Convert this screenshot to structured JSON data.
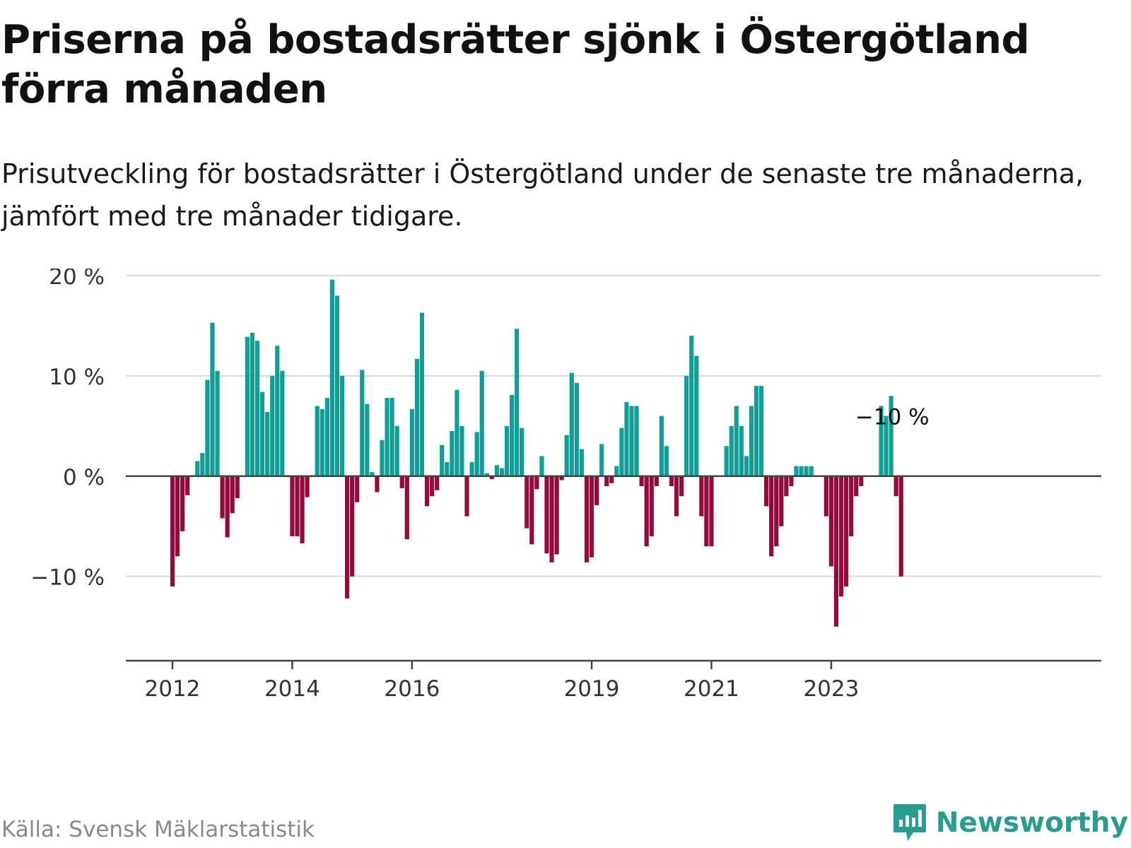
{
  "header": {
    "title": "Priserna på bostadsrätter sjönk i Östergötland förra månaden",
    "subtitle": "Prisutveckling för bostadsrätter i Östergötland under de senaste tre månaderna, jämfört med tre månader tidigare."
  },
  "footer": {
    "source": "Källa: Svensk Mäklarstatistik",
    "brand": "Newsworthy",
    "brand_icon": "bar-chart-speech-bubble-icon"
  },
  "colors": {
    "positive": "#139e95",
    "negative": "#930a3c",
    "grid": "#d9d9d9",
    "axis": "#444444",
    "brand": "#2a9c8e"
  },
  "chart_data": {
    "type": "bar",
    "title": "",
    "xlabel": "",
    "ylabel": "",
    "ylim": [
      -17,
      20
    ],
    "y_ticks": [
      20,
      10,
      0,
      -10
    ],
    "y_tick_labels": [
      "20 %",
      "10 %",
      "0 %",
      "−10 %"
    ],
    "x_ticks": [
      "2012-01",
      "2014-01",
      "2016-01",
      "2019-01",
      "2021-01",
      "2023-01"
    ],
    "x_tick_labels": [
      "2012",
      "2014",
      "2016",
      "2019",
      "2021",
      "2023"
    ],
    "grid": true,
    "annotation": {
      "label": "−10 %",
      "date": "2024-01"
    },
    "series": [
      {
        "start": "2011-05",
        "frequency": "monthly",
        "unit": "%",
        "values": [
          0,
          0,
          0,
          0,
          0,
          0,
          0,
          0,
          -11,
          -8,
          -5.5,
          -1.9,
          0.1,
          1.5,
          2.3,
          9.6,
          15.3,
          10.5,
          -4.2,
          -6.1,
          -3.7,
          -2.2,
          0,
          13.9,
          14.3,
          13.5,
          8.4,
          6.4,
          10,
          13,
          10.5,
          0.1,
          -6,
          -6,
          -6.7,
          -2.1,
          0.1,
          7,
          6.7,
          7.8,
          19.6,
          18,
          10,
          -12.2,
          -10,
          -2.6,
          10.6,
          7.2,
          0.4,
          -1.6,
          3.6,
          7.8,
          7.8,
          5,
          -1.2,
          -6.3,
          6.7,
          11.7,
          16.3,
          -3,
          -2,
          -1.4,
          3.1,
          1.4,
          4.5,
          8.6,
          5,
          -4,
          1.4,
          4.4,
          10.5,
          0.3,
          -0.3,
          1.1,
          0.8,
          5,
          8.1,
          14.7,
          4.8,
          -5.2,
          -6.8,
          -1.3,
          2,
          -7.7,
          -8.6,
          -7.8,
          -0.4,
          4.1,
          10.3,
          9.3,
          2.7,
          -8.6,
          -8.1,
          -2.9,
          3.2,
          -1,
          -0.7,
          1,
          4.8,
          7.4,
          7,
          7,
          -1,
          -7,
          -6,
          -1,
          6,
          3,
          -1,
          -4,
          -2,
          10,
          14,
          12,
          -4,
          -7,
          -7,
          0,
          0,
          3,
          5,
          7,
          5,
          2,
          7,
          9,
          9,
          -3,
          -8,
          -7,
          -5,
          -2,
          -1,
          1,
          1,
          1,
          1,
          0,
          0,
          -4,
          -9,
          -15,
          -12,
          -11,
          -6,
          -2,
          -1,
          0,
          0,
          0,
          7,
          6,
          8,
          -2,
          -10
        ]
      }
    ]
  }
}
